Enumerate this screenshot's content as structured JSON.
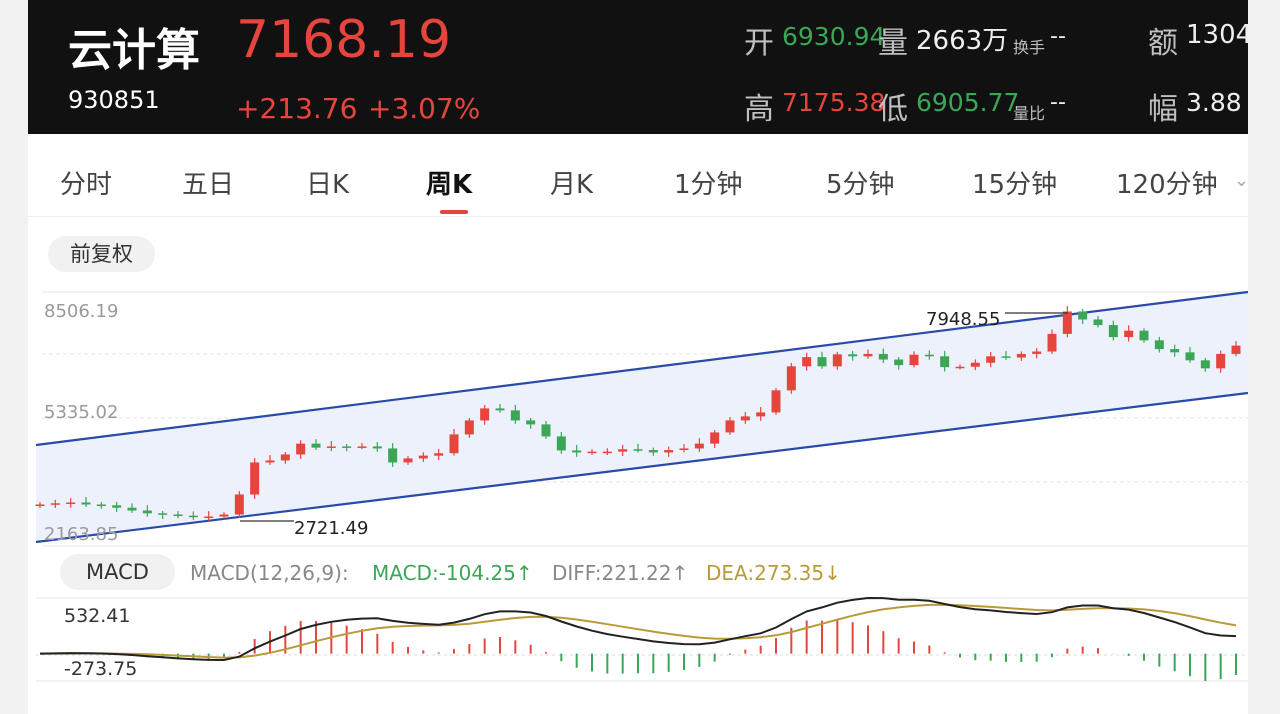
{
  "header": {
    "name": "云计算",
    "code": "930851",
    "price": "7168.19",
    "change": "+213.76",
    "change_pct": "+3.07%",
    "open_label": "开",
    "open_value": "6930.94",
    "volume_label": "量",
    "volume_value": "2663万",
    "turnover_label": "换手",
    "turnover_value": "--",
    "amount_label": "额",
    "amount_value": "1304",
    "high_label": "高",
    "high_value": "7175.38",
    "low_label": "低",
    "low_value": "6905.77",
    "vol_ratio_label": "量比",
    "vol_ratio_value": "--",
    "amplitude_label": "幅",
    "amplitude_value": "3.88"
  },
  "tabs": [
    {
      "label": "分时"
    },
    {
      "label": "五日"
    },
    {
      "label": "日K"
    },
    {
      "label": "周K"
    },
    {
      "label": "月K"
    },
    {
      "label": "1分钟"
    },
    {
      "label": "5分钟"
    },
    {
      "label": "15分钟"
    },
    {
      "label": "120分钟"
    }
  ],
  "active_tab": "周K",
  "adjust_label": "前复权",
  "price_axis": {
    "top": "8506.19",
    "mid": "5335.02",
    "bottom": "2163.85"
  },
  "annotations": {
    "high": "7948.55",
    "low": "2721.49"
  },
  "macd": {
    "pill": "MACD",
    "params": "MACD(12,26,9):",
    "macd_text": "MACD:-104.25↑",
    "diff_text": "DIFF:221.22↑",
    "dea_text": "DEA:273.35↓",
    "axis_top": "532.41",
    "axis_bottom": "-273.75"
  },
  "colors": {
    "up": "#e4463d",
    "down": "#3aa656",
    "channel": "#2a4aa8",
    "dea": "#b99a3a",
    "diff": "#222222"
  },
  "chart_data": {
    "type": "candlestick",
    "period": "周K",
    "ylim": [
      2163.85,
      8506.19
    ],
    "annotations": [
      {
        "label": "7948.55",
        "value": 7948.55
      },
      {
        "label": "2721.49",
        "value": 2721.49
      }
    ],
    "candles_close_approx": [
      3200,
      3230,
      3250,
      3200,
      3180,
      3120,
      3050,
      2980,
      2950,
      2920,
      2900,
      2900,
      2950,
      3450,
      4250,
      4300,
      4450,
      4720,
      4620,
      4650,
      4640,
      4650,
      4600,
      4250,
      4350,
      4420,
      4480,
      4950,
      5300,
      5600,
      5550,
      5300,
      5200,
      4900,
      4550,
      4500,
      4520,
      4520,
      4580,
      4560,
      4500,
      4560,
      4600,
      4720,
      5000,
      5300,
      5400,
      5500,
      6050,
      6650,
      6880,
      6650,
      6950,
      6900,
      6960,
      6820,
      6680,
      6940,
      6900,
      6630,
      6640,
      6740,
      6900,
      6870,
      6960,
      7020,
      7460,
      8020,
      7820,
      7680,
      7380,
      7540,
      7300,
      7080,
      7000,
      6800,
      6600,
      6960,
      7168
    ]
  }
}
